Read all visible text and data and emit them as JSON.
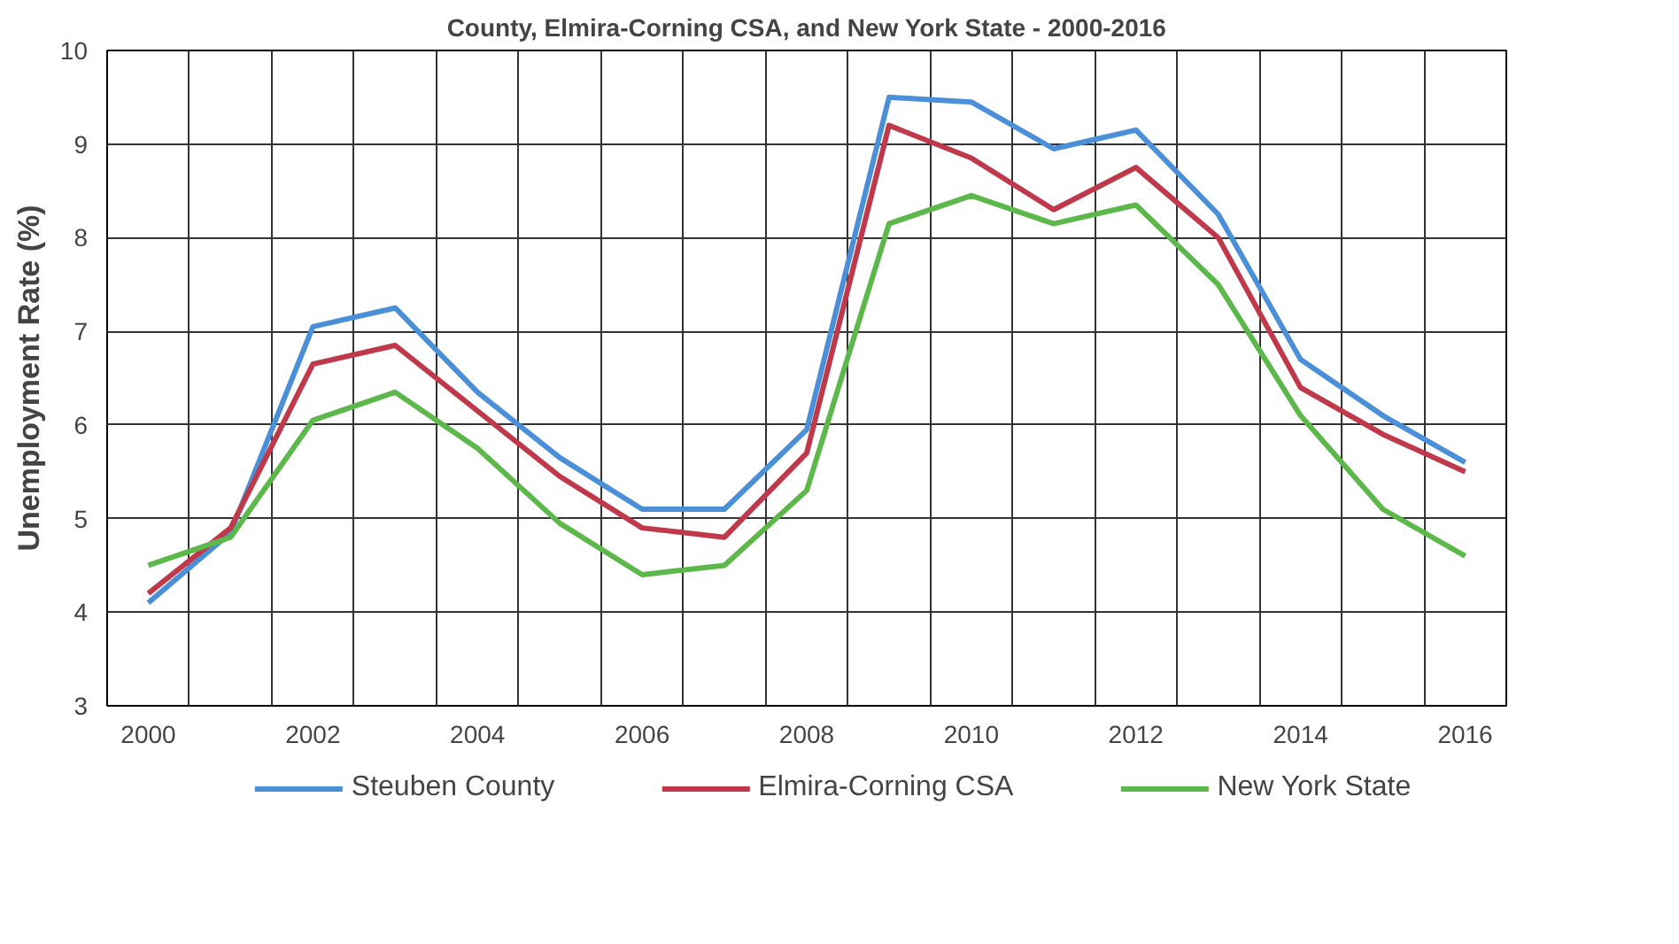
{
  "chart_data": {
    "type": "line",
    "title": "County, Elmira-Corning CSA, and New York State - 2000-2016",
    "ylabel": "Unemployment Rate (%)",
    "categories": [
      "2000",
      null,
      "2002",
      null,
      "2004",
      null,
      "2006",
      null,
      "2008",
      null,
      "2010",
      null,
      "2012",
      null,
      "2014",
      null,
      "2016"
    ],
    "series": [
      {
        "name": "Steuben County",
        "color": "#4a8fd8",
        "values": [
          4.1,
          4.85,
          7.05,
          7.25,
          6.35,
          5.65,
          5.1,
          5.1,
          5.95,
          9.5,
          9.45,
          8.95,
          9.15,
          8.25,
          6.7,
          6.1,
          5.6
        ]
      },
      {
        "name": "Elmira-Corning CSA",
        "color": "#c0394b",
        "values": [
          4.2,
          4.9,
          6.65,
          6.85,
          6.15,
          5.45,
          4.9,
          4.8,
          5.7,
          9.2,
          8.85,
          8.3,
          8.75,
          8.0,
          6.4,
          5.9,
          5.5
        ]
      },
      {
        "name": "New York State",
        "color": "#5cb84a",
        "values": [
          4.5,
          4.8,
          6.05,
          6.35,
          5.75,
          4.95,
          4.4,
          4.5,
          5.3,
          8.15,
          8.45,
          8.15,
          8.35,
          7.5,
          6.1,
          5.1,
          4.6
        ]
      }
    ],
    "ylim": [
      3,
      10
    ],
    "yticks": [
      3,
      4,
      5,
      6,
      7,
      8,
      9,
      10
    ],
    "grid": true,
    "legend": "bottom",
    "marker": "none",
    "line_style": "solid"
  }
}
